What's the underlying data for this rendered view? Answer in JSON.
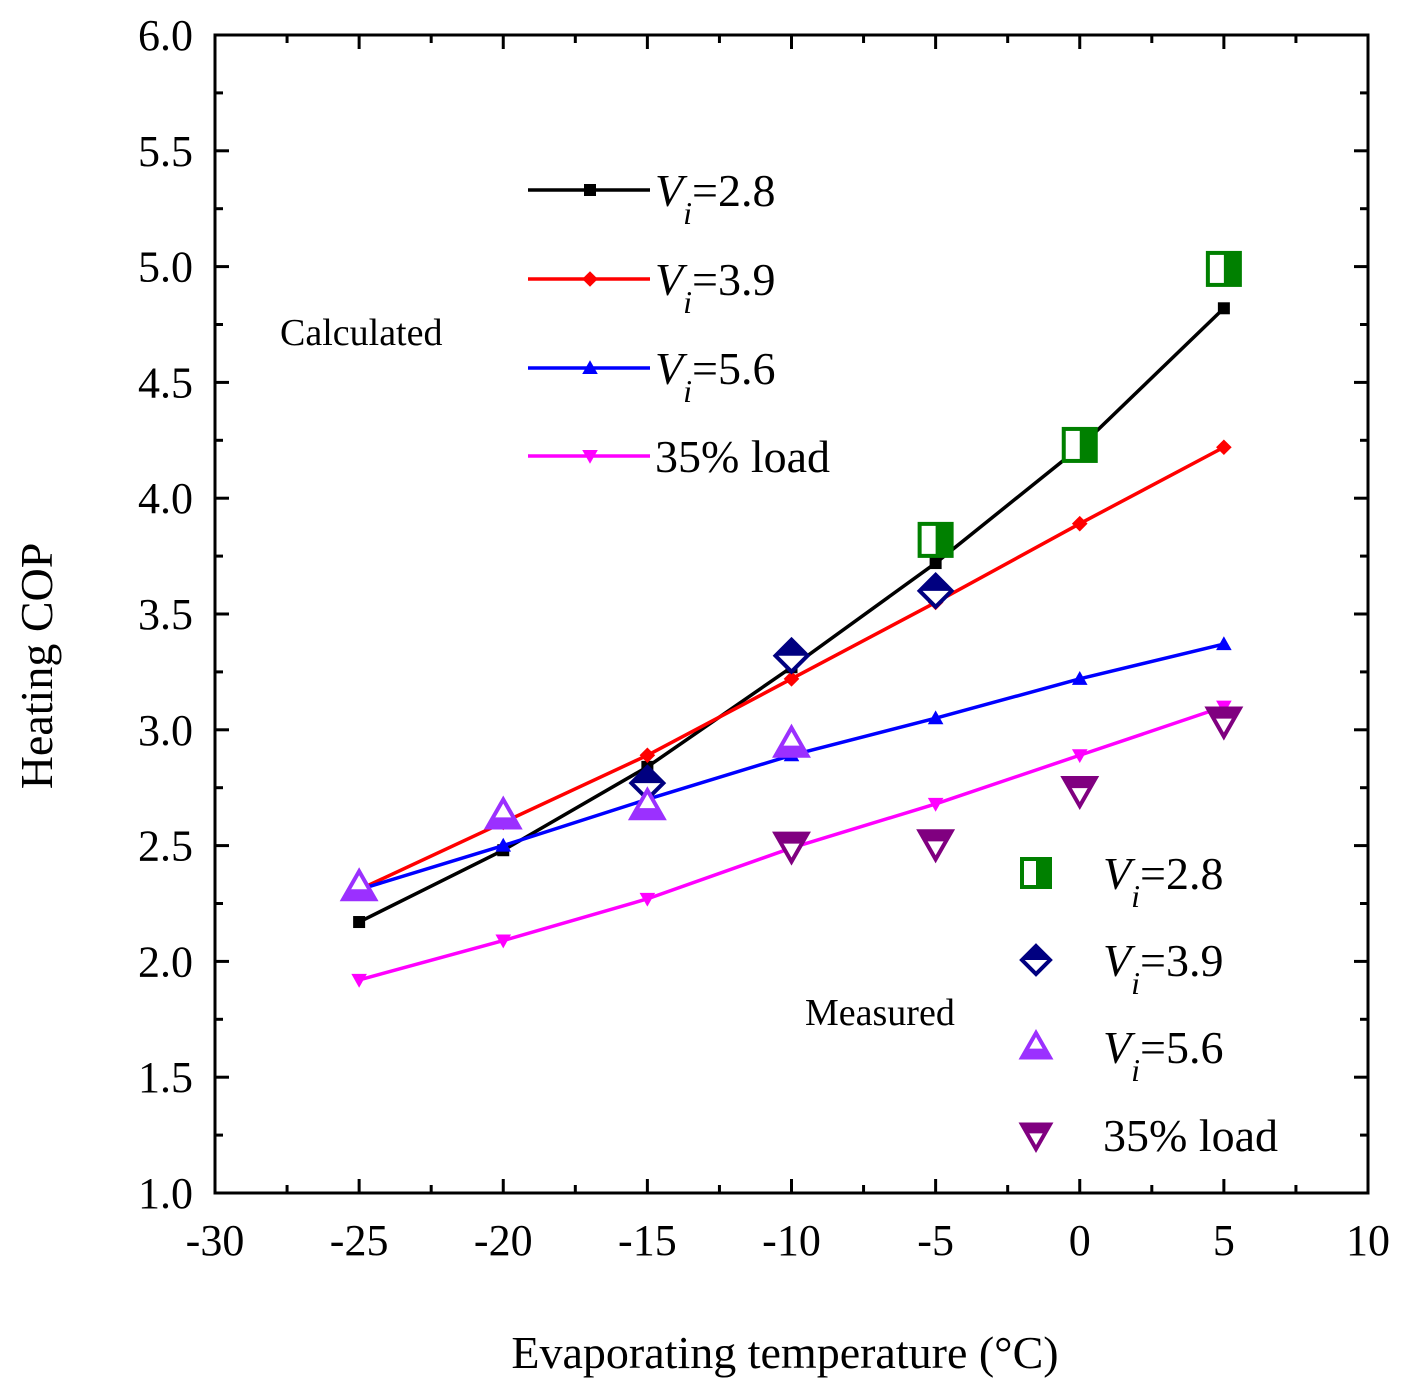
{
  "chart_data": {
    "type": "line",
    "title": "",
    "xlabel": "Evaporating temperature (°C)",
    "ylabel": "Heating COP",
    "xlim": [
      -30,
      10
    ],
    "ylim": [
      1.0,
      6.0
    ],
    "x_ticks": [
      -30,
      -25,
      -20,
      -15,
      -10,
      -5,
      0,
      5,
      10
    ],
    "x_tick_labels": [
      "-30",
      "-25",
      "-20",
      "-15",
      "-10",
      "-5",
      "0",
      "5",
      "10"
    ],
    "y_ticks": [
      1.0,
      1.5,
      2.0,
      2.5,
      3.0,
      3.5,
      4.0,
      4.5,
      5.0,
      5.5,
      6.0
    ],
    "y_tick_labels": [
      "1.0",
      "1.5",
      "2.0",
      "2.5",
      "3.0",
      "3.5",
      "4.0",
      "4.5",
      "5.0",
      "5.5",
      "6.0"
    ],
    "grid": false,
    "legend_calculated_label": "Calculated",
    "legend_measured_label": "Measured",
    "calculated_series": [
      {
        "name": "Vi=2.8",
        "name_main": "V",
        "name_sub": "i",
        "name_rest": "=2.8",
        "color": "#000000",
        "marker": "square",
        "x": [
          -25,
          -20,
          -15,
          -10,
          -5,
          0,
          5
        ],
        "y": [
          2.17,
          2.48,
          2.84,
          3.27,
          3.72,
          4.22,
          4.82
        ]
      },
      {
        "name": "Vi=3.9",
        "name_main": "V",
        "name_sub": "i",
        "name_rest": "=3.9",
        "color": "#ff0000",
        "marker": "diamond",
        "x": [
          -25,
          -20,
          -15,
          -10,
          -5,
          0,
          5
        ],
        "y": [
          2.31,
          2.6,
          2.89,
          3.22,
          3.55,
          3.89,
          4.22
        ]
      },
      {
        "name": "Vi=5.6",
        "name_main": "V",
        "name_sub": "i",
        "name_rest": "=5.6",
        "color": "#0000ff",
        "marker": "triangle-up",
        "x": [
          -25,
          -20,
          -15,
          -10,
          -5,
          0,
          5
        ],
        "y": [
          2.31,
          2.5,
          2.7,
          2.89,
          3.05,
          3.22,
          3.37
        ]
      },
      {
        "name": "35% load",
        "name_main": "35% load",
        "name_sub": "",
        "name_rest": "",
        "color": "#ff00ff",
        "marker": "triangle-down",
        "x": [
          -25,
          -20,
          -15,
          -10,
          -5,
          0,
          5
        ],
        "y": [
          1.92,
          2.09,
          2.27,
          2.49,
          2.68,
          2.89,
          3.1
        ]
      }
    ],
    "measured_series": [
      {
        "name": "Vi=2.8",
        "name_main": "V",
        "name_sub": "i",
        "name_rest": "=2.8",
        "color": "#008000",
        "marker": "half-square",
        "x": [
          -5,
          0,
          5
        ],
        "y": [
          3.82,
          4.23,
          4.99
        ]
      },
      {
        "name": "Vi=3.9",
        "name_main": "V",
        "name_sub": "i",
        "name_rest": "=3.9",
        "color": "#000080",
        "marker": "half-diamond",
        "x": [
          -15,
          -10,
          -5
        ],
        "y": [
          2.77,
          3.32,
          3.6
        ]
      },
      {
        "name": "Vi=5.6",
        "name_main": "V",
        "name_sub": "i",
        "name_rest": "=5.6",
        "color": "#9b30ff",
        "marker": "half-triangle-up",
        "x": [
          -25,
          -20,
          -15,
          -10
        ],
        "y": [
          2.32,
          2.63,
          2.67,
          2.94
        ]
      },
      {
        "name": "35% load",
        "name_main": "35% load",
        "name_sub": "",
        "name_rest": "",
        "color": "#800080",
        "marker": "half-triangle-down",
        "x": [
          -10,
          -5,
          0,
          5
        ],
        "y": [
          2.5,
          2.51,
          2.74,
          3.04
        ]
      }
    ]
  }
}
